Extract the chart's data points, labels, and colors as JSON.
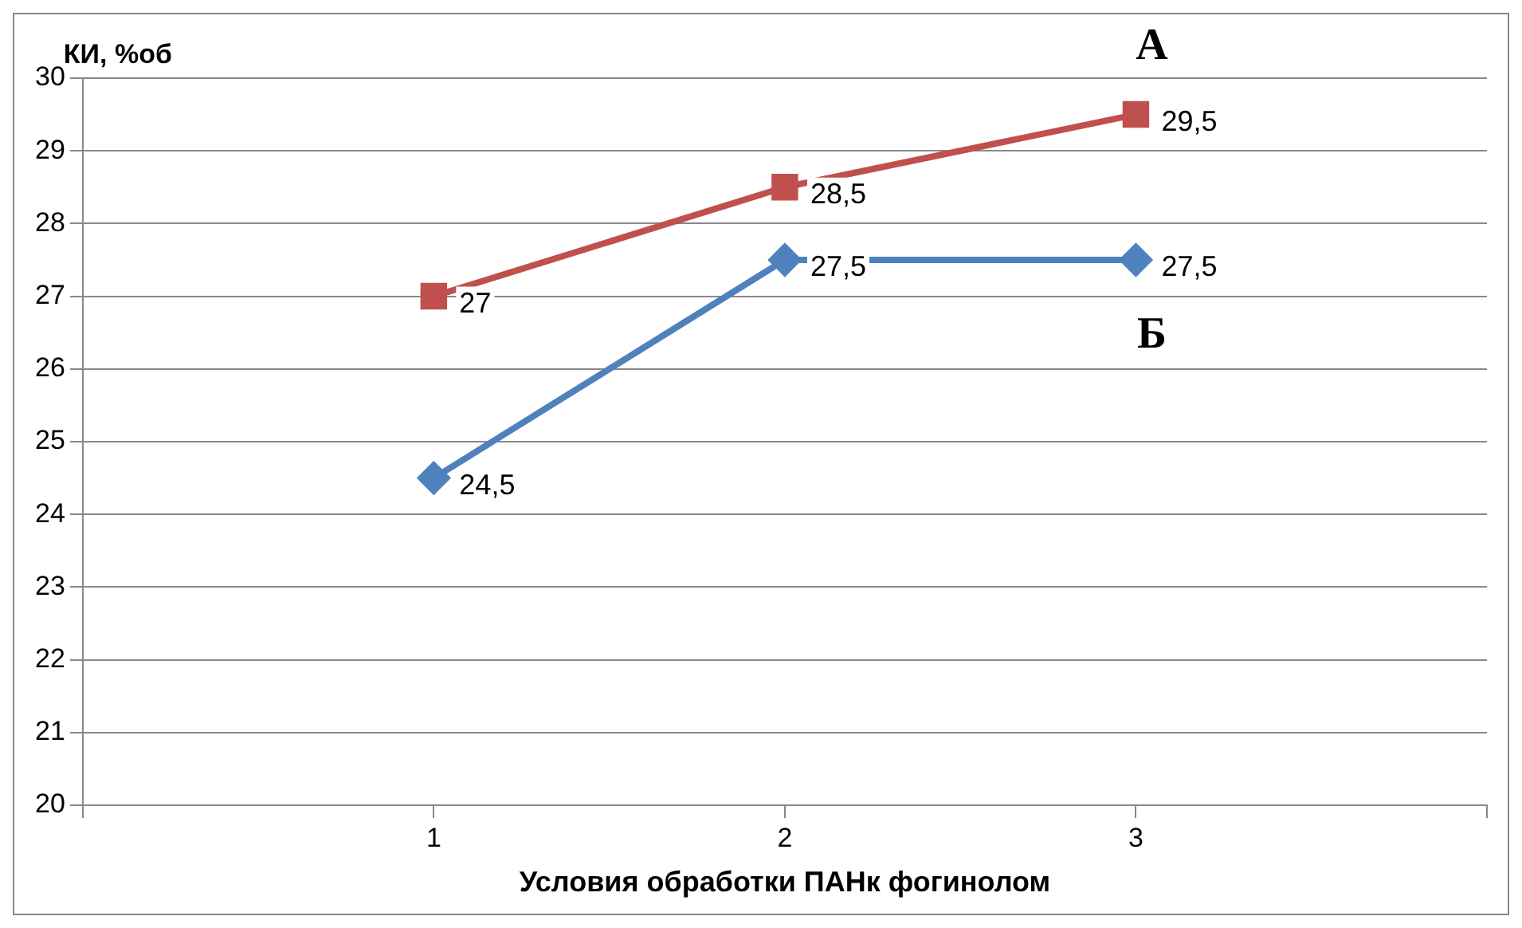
{
  "chart_data": {
    "type": "line",
    "xlabel": "Условия обработки ПАНк фогинолом",
    "ylabel": "КИ, %об",
    "x": [
      1,
      2,
      3
    ],
    "xlim": [
      0,
      4
    ],
    "xticks": [
      {
        "value": 0,
        "label": null
      },
      1,
      2,
      3,
      {
        "value": 4,
        "label": null
      }
    ],
    "ylim": [
      20,
      30
    ],
    "yticks": [
      20,
      21,
      22,
      23,
      24,
      25,
      26,
      27,
      28,
      29,
      30
    ],
    "grid": "y",
    "legend": false,
    "series": [
      {
        "name": "А",
        "color": "#c0504d",
        "values": [
          27,
          28.5,
          29.5
        ],
        "marker": "square",
        "value_labels": [
          "27",
          "28,5",
          "29,5"
        ]
      },
      {
        "name": "Б",
        "color": "#4f81bd",
        "values": [
          24.5,
          27.5,
          27.5
        ],
        "marker": "diamond",
        "value_labels": [
          "24,5",
          "27,5",
          "27,5"
        ]
      }
    ]
  }
}
